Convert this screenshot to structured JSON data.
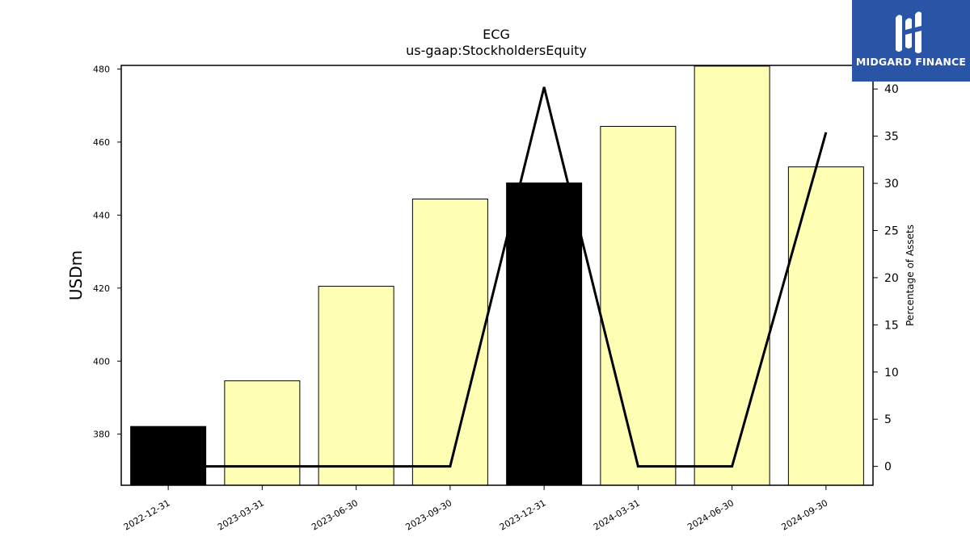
{
  "logo": {
    "name": "MIDGARD FINANCE",
    "icon": "midgard-finance-logo-icon",
    "color": "#2a55a6"
  },
  "chart_data": {
    "type": "bar",
    "title": "ECG",
    "subtitle": "us-gaap:StockholdersEquity",
    "ylabel": "USDm",
    "y2label": "Percentage of Assets",
    "categories": [
      "2022-12-31",
      "2023-03-31",
      "2023-06-30",
      "2023-09-30",
      "2023-12-31",
      "2024-03-31",
      "2024-06-30",
      "2024-09-30"
    ],
    "series": [
      {
        "type": "bar",
        "values": [
          382.1,
          394.6,
          420.5,
          444.4,
          448.8,
          464.3,
          480.8,
          453.2
        ],
        "colors": [
          "#000000",
          "#ffffb3",
          "#ffffb3",
          "#ffffb3",
          "#000000",
          "#ffffb3",
          "#ffffb3",
          "#ffffb3"
        ]
      },
      {
        "type": "line",
        "axis": "right",
        "values": [
          0,
          0,
          0,
          0,
          40.2,
          0,
          0,
          35.4
        ],
        "color": "#000000"
      }
    ],
    "ylim": [
      366,
      481
    ],
    "yticks": [
      380,
      400,
      420,
      440,
      460,
      480
    ],
    "y2lim": [
      -2,
      42.5
    ],
    "y2ticks": [
      0,
      5,
      10,
      15,
      20,
      25,
      30,
      35,
      40
    ],
    "grid": false
  }
}
